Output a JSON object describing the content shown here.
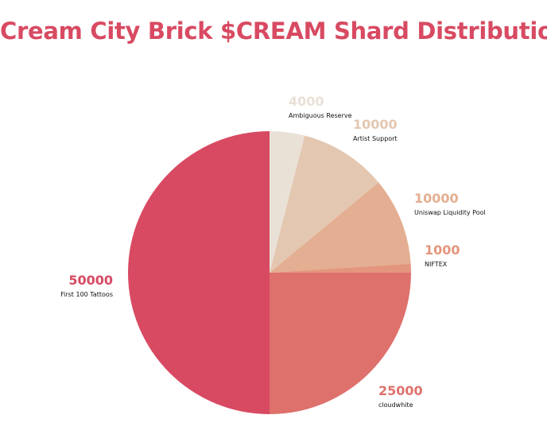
{
  "title": "Cream City Brick $CREAM Shard Distribution",
  "chart_data": {
    "type": "pie",
    "title": "Cream City Brick $CREAM Shard Distribution",
    "start_angle_deg": 0,
    "direction": "clockwise",
    "slices": [
      {
        "label": "Ambiguous Reserve",
        "value": 4000,
        "display_value": "4000",
        "color": "#e9e1d6",
        "label_side": "right"
      },
      {
        "label": "Artist Support",
        "value": 10000,
        "display_value": "10000",
        "color": "#e3c7b1",
        "label_side": "right"
      },
      {
        "label": "Uniswap Liquidity Pool",
        "value": 10000,
        "display_value": "10000",
        "color": "#e3ae91",
        "label_side": "right"
      },
      {
        "label": "NIFTEX",
        "value": 1000,
        "display_value": "1000",
        "color": "#e4957d",
        "label_side": "right"
      },
      {
        "label": "cloudwhite",
        "value": 25000,
        "display_value": "25000",
        "color": "#de716c",
        "label_side": "right"
      },
      {
        "label": "First 100 Tattoos",
        "value": 50000,
        "display_value": "50000",
        "color": "#d84a62",
        "label_side": "left"
      }
    ]
  }
}
